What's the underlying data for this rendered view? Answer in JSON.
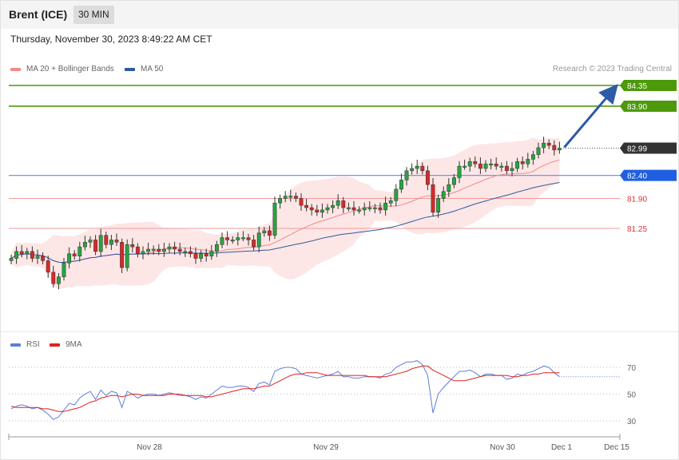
{
  "header": {
    "title": "Brent (ICE)",
    "timeframe": "30 MIN",
    "datetime": "Thursday, November 30, 2023 8:49:22 AM CET"
  },
  "legend": {
    "items": [
      {
        "label": "MA 20 + Bollinger Bands",
        "color": "#f08a8a"
      },
      {
        "label": "MA 50",
        "color": "#2f5a9e"
      }
    ],
    "credit": "Research © 2023 Trading Central"
  },
  "rsi_legend": {
    "items": [
      {
        "label": "RSI",
        "color": "#5b7fd6"
      },
      {
        "label": "9MA",
        "color": "#e02020"
      }
    ]
  },
  "levels": [
    {
      "value": "84.35",
      "color": "#4c9a0c",
      "style": "tag-green"
    },
    {
      "value": "83.90",
      "color": "#4c9a0c",
      "style": "tag-green"
    },
    {
      "value": "82.99",
      "color": "#333333",
      "style": "tag-dark"
    },
    {
      "value": "82.40",
      "color": "#2266dd",
      "style": "tag-blue"
    },
    {
      "value": "81.90",
      "color": "#e03030",
      "style": "text-red"
    },
    {
      "value": "81.25",
      "color": "#e03030",
      "style": "text-red"
    }
  ],
  "rsi_levels": [
    "70",
    "50",
    "30"
  ],
  "x_axis": [
    "Nov 28",
    "Nov 29",
    "Nov 30",
    "Dec 1",
    "Dec 15"
  ],
  "chart_data": {
    "type": "candlestick",
    "y_range": [
      80.0,
      84.7
    ],
    "candles_close": [
      80.6,
      80.75,
      80.7,
      80.75,
      80.6,
      80.65,
      80.55,
      80.3,
      80.05,
      80.2,
      80.5,
      80.7,
      80.65,
      80.85,
      80.95,
      81.0,
      80.75,
      81.1,
      80.9,
      81.0,
      80.95,
      80.4,
      80.9,
      80.85,
      80.7,
      80.75,
      80.8,
      80.8,
      80.75,
      80.8,
      80.85,
      80.8,
      80.75,
      80.75,
      80.7,
      80.6,
      80.7,
      80.65,
      80.75,
      80.9,
      81.05,
      81.0,
      81.0,
      81.05,
      81.05,
      81.0,
      80.85,
      81.15,
      81.2,
      81.1,
      81.8,
      81.9,
      81.95,
      81.95,
      81.9,
      81.75,
      81.7,
      81.65,
      81.6,
      81.65,
      81.7,
      81.75,
      81.85,
      81.7,
      81.7,
      81.65,
      81.65,
      81.7,
      81.7,
      81.7,
      81.65,
      81.8,
      81.85,
      82.1,
      82.3,
      82.5,
      82.55,
      82.6,
      82.5,
      82.2,
      81.6,
      81.9,
      82.05,
      82.2,
      82.35,
      82.6,
      82.6,
      82.7,
      82.65,
      82.55,
      82.65,
      82.65,
      82.6,
      82.6,
      82.5,
      82.55,
      82.7,
      82.65,
      82.75,
      82.85,
      83.0,
      83.1,
      83.05,
      82.95,
      82.99
    ],
    "rsi": [
      39,
      41,
      42,
      41,
      39,
      40,
      38,
      35,
      31,
      33,
      38,
      43,
      42,
      47,
      50,
      52,
      46,
      53,
      49,
      52,
      51,
      40,
      52,
      50,
      47,
      49,
      50,
      50,
      49,
      50,
      51,
      50,
      49,
      49,
      48,
      46,
      48,
      47,
      50,
      53,
      56,
      55,
      55,
      56,
      56,
      55,
      52,
      58,
      59,
      57,
      67,
      69,
      70,
      70,
      69,
      65,
      64,
      63,
      62,
      63,
      64,
      65,
      67,
      63,
      63,
      62,
      62,
      63,
      63,
      63,
      62,
      65,
      66,
      70,
      72,
      74,
      74,
      75,
      72,
      64,
      36,
      50,
      55,
      59,
      63,
      67,
      67,
      68,
      66,
      63,
      65,
      65,
      64,
      64,
      61,
      62,
      65,
      64,
      66,
      67,
      69,
      71,
      70,
      66,
      63
    ],
    "rsi_ma9": [
      41,
      40,
      40,
      40,
      40,
      40,
      39,
      39,
      38,
      37,
      37,
      38,
      39,
      40,
      42,
      44,
      45,
      47,
      48,
      49,
      49,
      48,
      49,
      50,
      50,
      49,
      49,
      49,
      49,
      49,
      50,
      50,
      50,
      49,
      49,
      49,
      49,
      48,
      48,
      49,
      50,
      51,
      52,
      53,
      54,
      54,
      54,
      55,
      56,
      56,
      58,
      60,
      62,
      64,
      65,
      65,
      66,
      66,
      66,
      65,
      64,
      64,
      64,
      64,
      64,
      64,
      64,
      64,
      63,
      63,
      63,
      63,
      64,
      65,
      66,
      67,
      69,
      70,
      71,
      71,
      68,
      66,
      64,
      62,
      60,
      60,
      60,
      61,
      62,
      63,
      64,
      64,
      64,
      64,
      64,
      63,
      63,
      64,
      64,
      65,
      65,
      66,
      66,
      66,
      66
    ],
    "rsi_levels": [
      70,
      50,
      30
    ]
  }
}
